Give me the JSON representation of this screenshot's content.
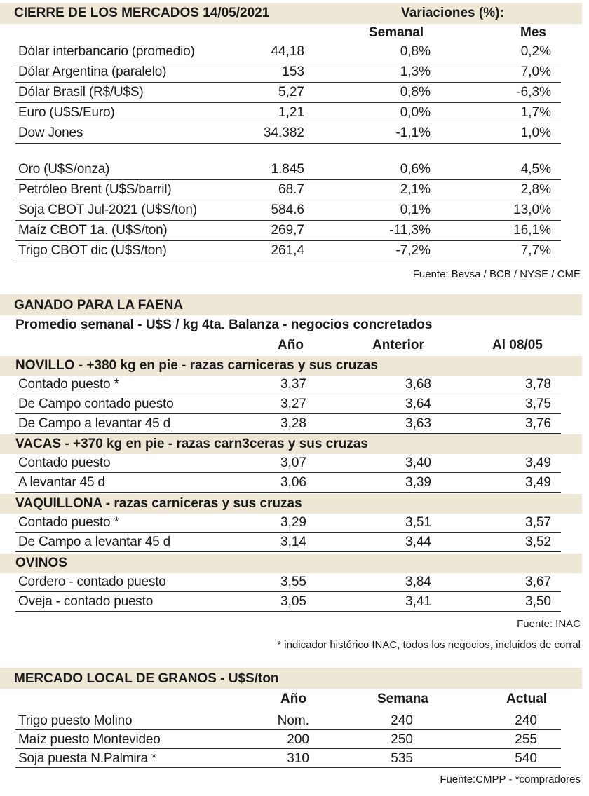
{
  "mercados": {
    "title": "CIERRE DE LOS MERCADOS 14/05/2021",
    "variaciones_label": "Variaciones (%):",
    "col_semanal": "Semanal",
    "col_mes": "Mes",
    "group1": [
      {
        "label": "Dólar interbancario (promedio)",
        "value": "44,18",
        "semanal": "0,8%",
        "mes": "0,2%"
      },
      {
        "label": "Dólar Argentina (paralelo)",
        "value": "153",
        "semanal": "1,3%",
        "mes": "7,0%"
      },
      {
        "label": "Dólar Brasil (R$/U$S)",
        "value": "5,27",
        "semanal": "0,8%",
        "mes": "-6,3%"
      },
      {
        "label": "Euro (U$S/Euro)",
        "value": "1,21",
        "semanal": "0,0%",
        "mes": "1,7%"
      },
      {
        "label": "Dow Jones",
        "value": "34.382",
        "semanal": "-1,1%",
        "mes": "1,0%"
      }
    ],
    "group2": [
      {
        "label": "Oro (U$S/onza)",
        "value": "1.845",
        "semanal": "0,6%",
        "mes": "4,5%"
      },
      {
        "label": "Petróleo Brent (U$S/barril)",
        "value": "68.7",
        "semanal": "2,1%",
        "mes": "2,8%"
      },
      {
        "label": "Soja CBOT Jul-2021 (U$S/ton)",
        "value": "584.6",
        "semanal": "0,1%",
        "mes": "13,0%"
      },
      {
        "label": "Maíz CBOT 1a. (U$S/ton)",
        "value": "269,7",
        "semanal": "-11,3%",
        "mes": "16,1%"
      },
      {
        "label": "Trigo CBOT dic (U$S/ton)",
        "value": "261,4",
        "semanal": "-7,2%",
        "mes": "7,7%"
      }
    ],
    "source": "Fuente: Bevsa / BCB / NYSE / CME"
  },
  "ganado": {
    "title": "GANADO PARA LA FAENA",
    "subtitle": "Promedio semanal - U$S / kg 4ta. Balanza - negocios concretados",
    "col_anio": "Año",
    "col_anterior": "Anterior",
    "col_al": "Al 08/05",
    "novillo": {
      "title": "NOVILLO - +380 kg en pie - razas carniceras y sus cruzas",
      "rows": [
        {
          "label": "Contado puesto *",
          "anio": "3,37",
          "anterior": "3,68",
          "al": "3,78"
        },
        {
          "label": "De Campo contado puesto",
          "anio": "3,27",
          "anterior": "3,64",
          "al": "3,75"
        },
        {
          "label": "De Campo a levantar 45 d",
          "anio": "3,28",
          "anterior": "3,63",
          "al": "3,76"
        }
      ]
    },
    "vacas": {
      "title": "VACAS - +370 kg en pie - razas carn3ceras y sus cruzas",
      "rows": [
        {
          "label": "Contado puesto",
          "anio": "3,07",
          "anterior": "3,40",
          "al": "3,49"
        },
        {
          "label": "A levantar 45 d",
          "anio": "3,06",
          "anterior": "3,39",
          "al": "3,49"
        }
      ]
    },
    "vaquillona": {
      "title": "VAQUILLONA - razas carniceras y sus cruzas",
      "rows": [
        {
          "label": "Contado puesto *",
          "anio": "3,29",
          "anterior": "3,51",
          "al": "3,57"
        },
        {
          "label": "De Campo a levantar 45 d",
          "anio": "3,14",
          "anterior": "3,44",
          "al": "3,52"
        }
      ]
    },
    "ovinos": {
      "title": "OVINOS",
      "rows": [
        {
          "label": "Cordero - contado puesto",
          "anio": "3,55",
          "anterior": "3,84",
          "al": "3,67"
        },
        {
          "label": "Oveja - contado puesto",
          "anio": "3,05",
          "anterior": "3,41",
          "al": "3,50"
        }
      ]
    },
    "source": "Fuente: INAC",
    "note": "* indicador histórico INAC, todos los negocios, incluidos de corral"
  },
  "granos": {
    "title": "MERCADO LOCAL DE GRANOS - U$S/ton",
    "col_anio": "Año",
    "col_semana": "Semana",
    "col_actual": "Actual",
    "rows": [
      {
        "label": "Trigo puesto Molino",
        "anio": "Nom.",
        "semana": "240",
        "actual": "240"
      },
      {
        "label": "Maíz puesto Montevideo",
        "anio": "200",
        "semana": "250",
        "actual": "255"
      },
      {
        "label": "Soja puesta N.Palmira *",
        "anio": "310",
        "semana": "535",
        "actual": "540"
      }
    ],
    "source": "Fuente:CMPP - *compradores"
  }
}
